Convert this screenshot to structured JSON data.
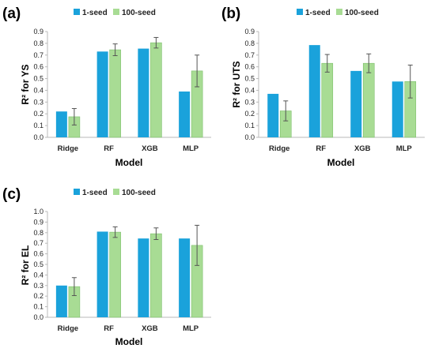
{
  "colors": {
    "seed1": "#1aa2db",
    "seed100": "#a8dc94",
    "seed100_edge": "#7cbf6a",
    "axis": "#b8b8b8",
    "errorbar": "#555555"
  },
  "chart_data": [
    {
      "panel": "(a)",
      "type": "bar",
      "categories": [
        "Ridge",
        "RF",
        "XGB",
        "MLP"
      ],
      "series": [
        {
          "name": "1-seed",
          "values": [
            0.22,
            0.73,
            0.755,
            0.39
          ],
          "error": [
            0,
            0,
            0,
            0
          ]
        },
        {
          "name": "100-seed",
          "values": [
            0.175,
            0.745,
            0.805,
            0.565
          ],
          "error": [
            0.07,
            0.05,
            0.045,
            0.135
          ]
        }
      ],
      "xlabel": "Model",
      "ylabel": "R² for YS",
      "ylim": [
        0,
        0.9
      ],
      "yticks": [
        "0.0",
        "0.1",
        "0.2",
        "0.3",
        "0.4",
        "0.5",
        "0.6",
        "0.7",
        "0.8",
        "0.9"
      ],
      "legend": "top"
    },
    {
      "panel": "(b)",
      "type": "bar",
      "categories": [
        "Ridge",
        "RF",
        "XGB",
        "MLP"
      ],
      "series": [
        {
          "name": "1-seed",
          "values": [
            0.37,
            0.785,
            0.565,
            0.475
          ],
          "error": [
            0,
            0,
            0,
            0
          ]
        },
        {
          "name": "100-seed",
          "values": [
            0.225,
            0.63,
            0.63,
            0.475
          ],
          "error": [
            0.085,
            0.075,
            0.08,
            0.14
          ]
        }
      ],
      "xlabel": "Model",
      "ylabel": "R² for UTS",
      "ylim": [
        0,
        0.9
      ],
      "yticks": [
        "0.0",
        "0.1",
        "0.2",
        "0.3",
        "0.4",
        "0.5",
        "0.6",
        "0.7",
        "0.8",
        "0.9"
      ],
      "legend": "top"
    },
    {
      "panel": "(c)",
      "type": "bar",
      "categories": [
        "Ridge",
        "RF",
        "XGB",
        "MLP"
      ],
      "series": [
        {
          "name": "1-seed",
          "values": [
            0.3,
            0.81,
            0.745,
            0.745
          ],
          "error": [
            0,
            0,
            0,
            0
          ]
        },
        {
          "name": "100-seed",
          "values": [
            0.29,
            0.805,
            0.79,
            0.68
          ],
          "error": [
            0.085,
            0.05,
            0.055,
            0.19
          ]
        }
      ],
      "xlabel": "Model",
      "ylabel": "R² for EL",
      "ylim": [
        0,
        1.0
      ],
      "yticks": [
        "0.0",
        "0.1",
        "0.2",
        "0.3",
        "0.4",
        "0.5",
        "0.6",
        "0.7",
        "0.8",
        "0.9",
        "1.0"
      ],
      "legend": "top"
    }
  ]
}
